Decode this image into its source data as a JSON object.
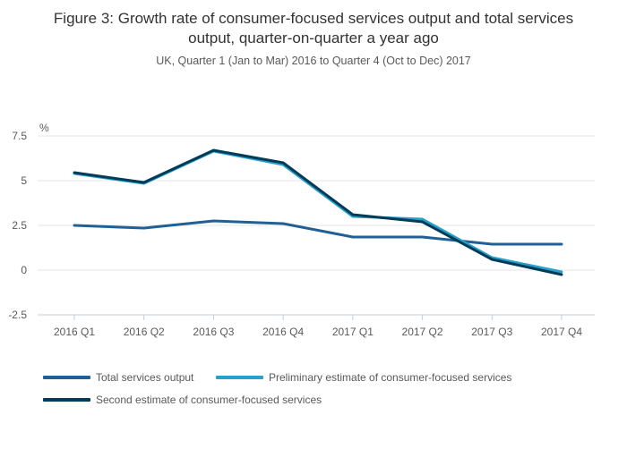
{
  "figure": {
    "title": "Figure 3: Growth rate of consumer-focused services output and total services output, quarter-on-quarter a year ago",
    "subtitle": "UK, Quarter 1 (Jan to Mar) 2016 to Quarter 4 (Oct to Dec) 2017"
  },
  "chart_data": {
    "type": "line",
    "title": "Figure 3: Growth rate of consumer-focused services output and total services output, quarter-on-quarter a year ago",
    "subtitle": "UK, Quarter 1 (Jan to Mar) 2016 to Quarter 4 (Oct to Dec) 2017",
    "unit_label": "%",
    "categories": [
      "2016 Q1",
      "2016 Q2",
      "2016 Q3",
      "2016 Q4",
      "2017 Q1",
      "2017 Q2",
      "2017 Q3",
      "2017 Q4"
    ],
    "series": [
      {
        "name": "Total services output",
        "color": "#206095",
        "values": [
          2.5,
          2.35,
          2.75,
          2.6,
          1.85,
          1.85,
          1.45,
          1.45
        ]
      },
      {
        "name": "Preliminary estimate of consumer-focused services",
        "color": "#27A0CC",
        "values": [
          5.4,
          4.85,
          6.65,
          5.9,
          3.0,
          2.85,
          0.7,
          -0.1
        ]
      },
      {
        "name": "Second estimate of consumer-focused services",
        "color": "#003C57",
        "values": [
          5.45,
          4.9,
          6.7,
          6.0,
          3.1,
          2.7,
          0.6,
          -0.25
        ]
      }
    ],
    "yticks": [
      7.5,
      5,
      2.5,
      0,
      -2.5
    ],
    "ylim": [
      -2.5,
      7.5
    ],
    "grid": true,
    "legend_position": "bottom-left",
    "style": {
      "grid_color": "#e6e6e6",
      "axis_color": "#c3ced7",
      "tick_label_color": "#595959",
      "line_width": 3
    }
  }
}
